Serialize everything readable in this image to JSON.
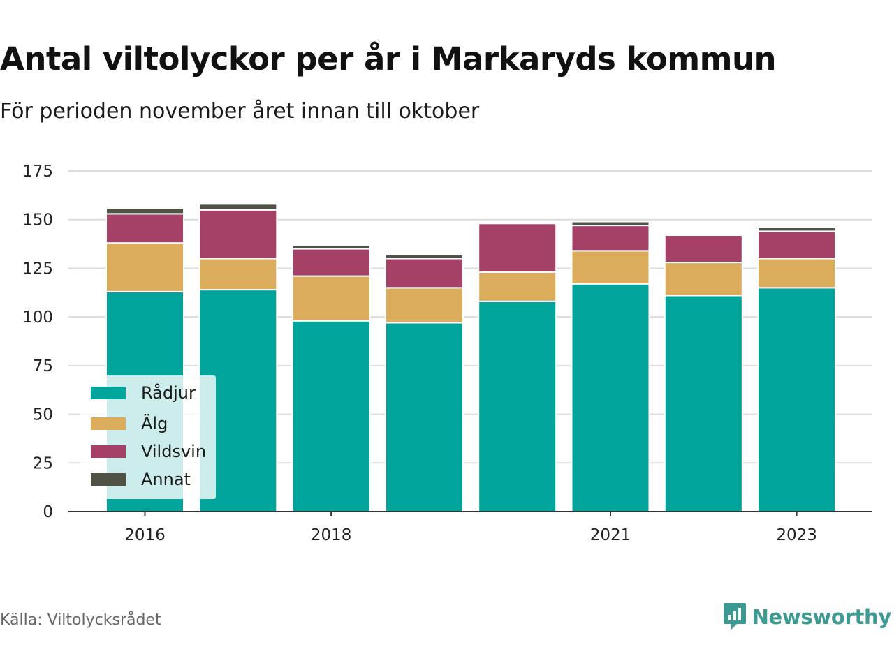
{
  "header": {
    "title": "Antal viltolyckor per år i Markaryds kommun",
    "subtitle": "För perioden november året innan till oktober"
  },
  "footer": {
    "source": "Källa: Viltolycksrådet",
    "brand": "Newsworthy"
  },
  "colors": {
    "Rådjur": "#00a49a",
    "Älg": "#dbac5b",
    "Vildsvin": "#a54067",
    "Annat": "#4f5244",
    "grid": "#dddddd",
    "axis": "#333333",
    "brand": "#3d9a93"
  },
  "legend": {
    "items": [
      {
        "label": "Rådjur",
        "color": "#00a49a"
      },
      {
        "label": "Älg",
        "color": "#dbac5b"
      },
      {
        "label": "Vildsvin",
        "color": "#a54067"
      },
      {
        "label": "Annat",
        "color": "#4f5244"
      }
    ]
  },
  "chart_data": {
    "type": "bar",
    "stacked": true,
    "title": "Antal viltolyckor per år i Markaryds kommun",
    "subtitle": "För perioden november året innan till oktober",
    "categories": [
      "2016",
      "2017",
      "2018",
      "2019",
      "2020",
      "2021",
      "2022",
      "2023"
    ],
    "x_tick_labels": [
      "2016",
      "",
      "2018",
      "",
      "",
      "2021",
      "",
      "2023"
    ],
    "series": [
      {
        "name": "Rådjur",
        "values": [
          113,
          114,
          98,
          97,
          108,
          117,
          111,
          115
        ]
      },
      {
        "name": "Älg",
        "values": [
          25,
          16,
          23,
          18,
          15,
          17,
          17,
          15
        ]
      },
      {
        "name": "Vildsvin",
        "values": [
          15,
          25,
          14,
          15,
          25,
          13,
          14,
          14
        ]
      },
      {
        "name": "Annat",
        "values": [
          3,
          3,
          2,
          2,
          0,
          2,
          0,
          2
        ]
      }
    ],
    "ylim": [
      0,
      175
    ],
    "yticks": [
      0,
      25,
      50,
      75,
      100,
      125,
      150,
      175
    ],
    "xlabel": "",
    "ylabel": "",
    "grid": true,
    "legend_position": "bottom-left"
  }
}
